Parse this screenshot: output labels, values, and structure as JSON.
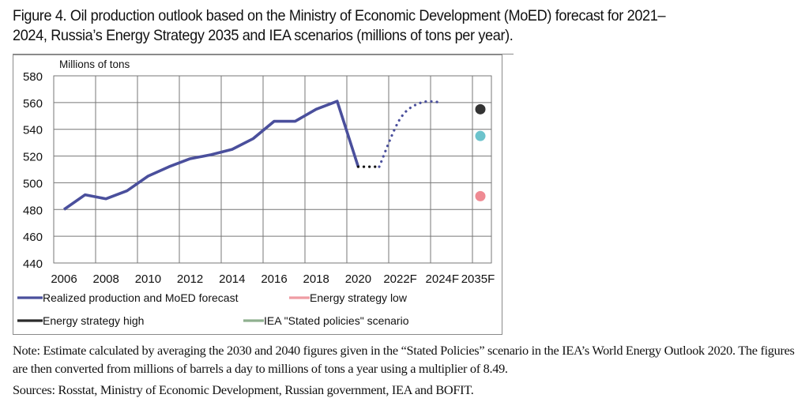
{
  "title": {
    "line1": "Figure 4. Oil production outlook based on the Ministry of Economic Development (MoED) forecast for 2021–",
    "line2": "2024, Russia’s Energy Strategy 2035 and IEA scenarios (millions of tons per year)."
  },
  "chart_data": {
    "type": "line",
    "title": "Oil production outlook based on MoED forecast, Energy Strategy 2035 and IEA scenarios",
    "ylabel": "Millions of tons",
    "xlabel": "",
    "ylim": [
      440,
      580
    ],
    "yticks": [
      440,
      460,
      480,
      500,
      520,
      540,
      560,
      580
    ],
    "xtick_labels": [
      "2006",
      "2008",
      "2010",
      "2012",
      "2014",
      "2016",
      "2018",
      "2020",
      "2022F",
      "2024F",
      "2035F"
    ],
    "grid": true,
    "legend_position": "bottom",
    "series": [
      {
        "name": "Realized production and MoED forecast",
        "color": "#4a4f9c",
        "style": "solid",
        "x": [
          2006,
          2007,
          2008,
          2009,
          2010,
          2011,
          2012,
          2013,
          2014,
          2015,
          2016,
          2017,
          2018,
          2019,
          2020
        ],
        "values": [
          480,
          491,
          488,
          494,
          505,
          512,
          518,
          521,
          525,
          533,
          546,
          546,
          555,
          561,
          512
        ]
      },
      {
        "name": "MoED forecast (transition)",
        "color": "#111111",
        "style": "dotted",
        "x": [
          2020,
          2021
        ],
        "values": [
          512,
          512
        ]
      },
      {
        "name": "MoED forecast",
        "color": "#4a4f9c",
        "style": "dotted",
        "x": [
          2021,
          2022,
          2023,
          2024
        ],
        "values": [
          512,
          548,
          560,
          560
        ]
      },
      {
        "name": "Energy strategy low",
        "color": "#ef8a93",
        "style": "point",
        "x": [
          "2035F"
        ],
        "values": [
          490
        ]
      },
      {
        "name": "Energy strategy high",
        "color": "#333333",
        "style": "point",
        "x": [
          "2035F"
        ],
        "values": [
          555
        ]
      },
      {
        "name": "IEA \"Stated policies\" scenario",
        "color": "#6cc3cc",
        "style": "point",
        "x": [
          "2035F"
        ],
        "values": [
          535
        ]
      }
    ],
    "legend": [
      {
        "label": "Realized production and MoED forecast",
        "color": "#4a4f9c"
      },
      {
        "label": "Energy strategy low",
        "color": "#ef9ca3"
      },
      {
        "label": "Energy strategy high",
        "color": "#2b2b2b"
      },
      {
        "label": "IEA \"Stated policies\" scenario",
        "color": "#8fb08f"
      }
    ]
  },
  "note": "Note: Estimate calculated by averaging the 2030 and 2040 figures given in the “Stated Policies” scenario in the IEA’s World Energy Outlook 2020. The figures are then converted from millions of barrels a day to millions of tons a year using a multiplier of 8.49.",
  "sources": "Sources: Rosstat, Ministry of Economic Development, Russian government, IEA and BOFIT."
}
